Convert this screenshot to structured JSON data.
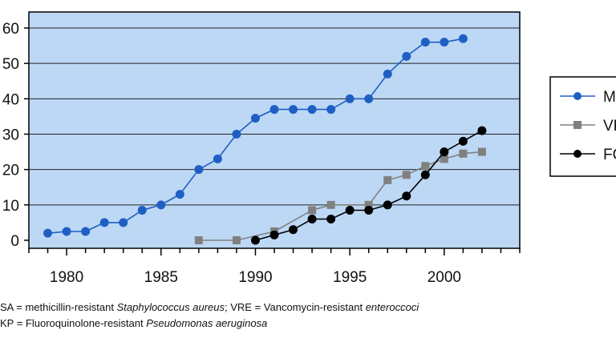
{
  "chart_data": {
    "type": "line",
    "title": "",
    "xlabel": "",
    "ylabel": "",
    "xlim": [
      1978,
      2004
    ],
    "ylim": [
      0,
      60
    ],
    "x_ticks": [
      1980,
      1985,
      1990,
      1995,
      2000
    ],
    "y_ticks": [
      0,
      10,
      20,
      30,
      40,
      50,
      60
    ],
    "grid": "horizontal",
    "legend_position": "right",
    "plot_background": "#bcd8f5",
    "series": [
      {
        "name": "MRSA",
        "legend_label": "MR",
        "color": "#1f5fc4",
        "marker": "circle",
        "points": [
          [
            1979,
            2
          ],
          [
            1980,
            2.5
          ],
          [
            1981,
            2.5
          ],
          [
            1982,
            5
          ],
          [
            1983,
            5
          ],
          [
            1984,
            8.5
          ],
          [
            1985,
            10
          ],
          [
            1986,
            13
          ],
          [
            1987,
            20
          ],
          [
            1988,
            23
          ],
          [
            1989,
            30
          ],
          [
            1990,
            34.5
          ],
          [
            1991,
            37
          ],
          [
            1992,
            37
          ],
          [
            1993,
            37
          ],
          [
            1994,
            37
          ],
          [
            1995,
            40
          ],
          [
            1996,
            40
          ],
          [
            1997,
            47
          ],
          [
            1998,
            52
          ],
          [
            1999,
            56
          ],
          [
            2000,
            56
          ],
          [
            2001,
            57
          ]
        ]
      },
      {
        "name": "VRE",
        "legend_label": "VR",
        "color": "#808080",
        "marker": "square",
        "points": [
          [
            1987,
            0
          ],
          [
            1989,
            0
          ],
          [
            1991,
            2.5
          ],
          [
            1993,
            8.5
          ],
          [
            1994,
            10
          ],
          [
            1996,
            10
          ],
          [
            1997,
            17
          ],
          [
            1998,
            18.5
          ],
          [
            1999,
            21
          ],
          [
            2000,
            23
          ],
          [
            2001,
            24.5
          ],
          [
            2002,
            25
          ]
        ]
      },
      {
        "name": "FQRP",
        "legend_label": "FQ",
        "color": "#000000",
        "marker": "circle",
        "points": [
          [
            1990,
            0
          ],
          [
            1991,
            1.5
          ],
          [
            1992,
            3
          ],
          [
            1993,
            6
          ],
          [
            1994,
            6
          ],
          [
            1995,
            8.5
          ],
          [
            1996,
            8.5
          ],
          [
            1997,
            10
          ],
          [
            1998,
            12.5
          ],
          [
            1999,
            18.5
          ],
          [
            2000,
            25
          ],
          [
            2001,
            28
          ],
          [
            2002,
            31
          ]
        ]
      }
    ]
  },
  "footnote": {
    "line1_prefix": "SA = methicillin-resistant ",
    "line1_italic1": "Staphylococcus aureus",
    "line1_mid": "; VRE = Vancomycin-resistant ",
    "line1_italic2": "enteroccoci",
    "line2_prefix": "KP = Fluoroquinolone-resistant ",
    "line2_italic": "Pseudomonas aeruginosa"
  }
}
